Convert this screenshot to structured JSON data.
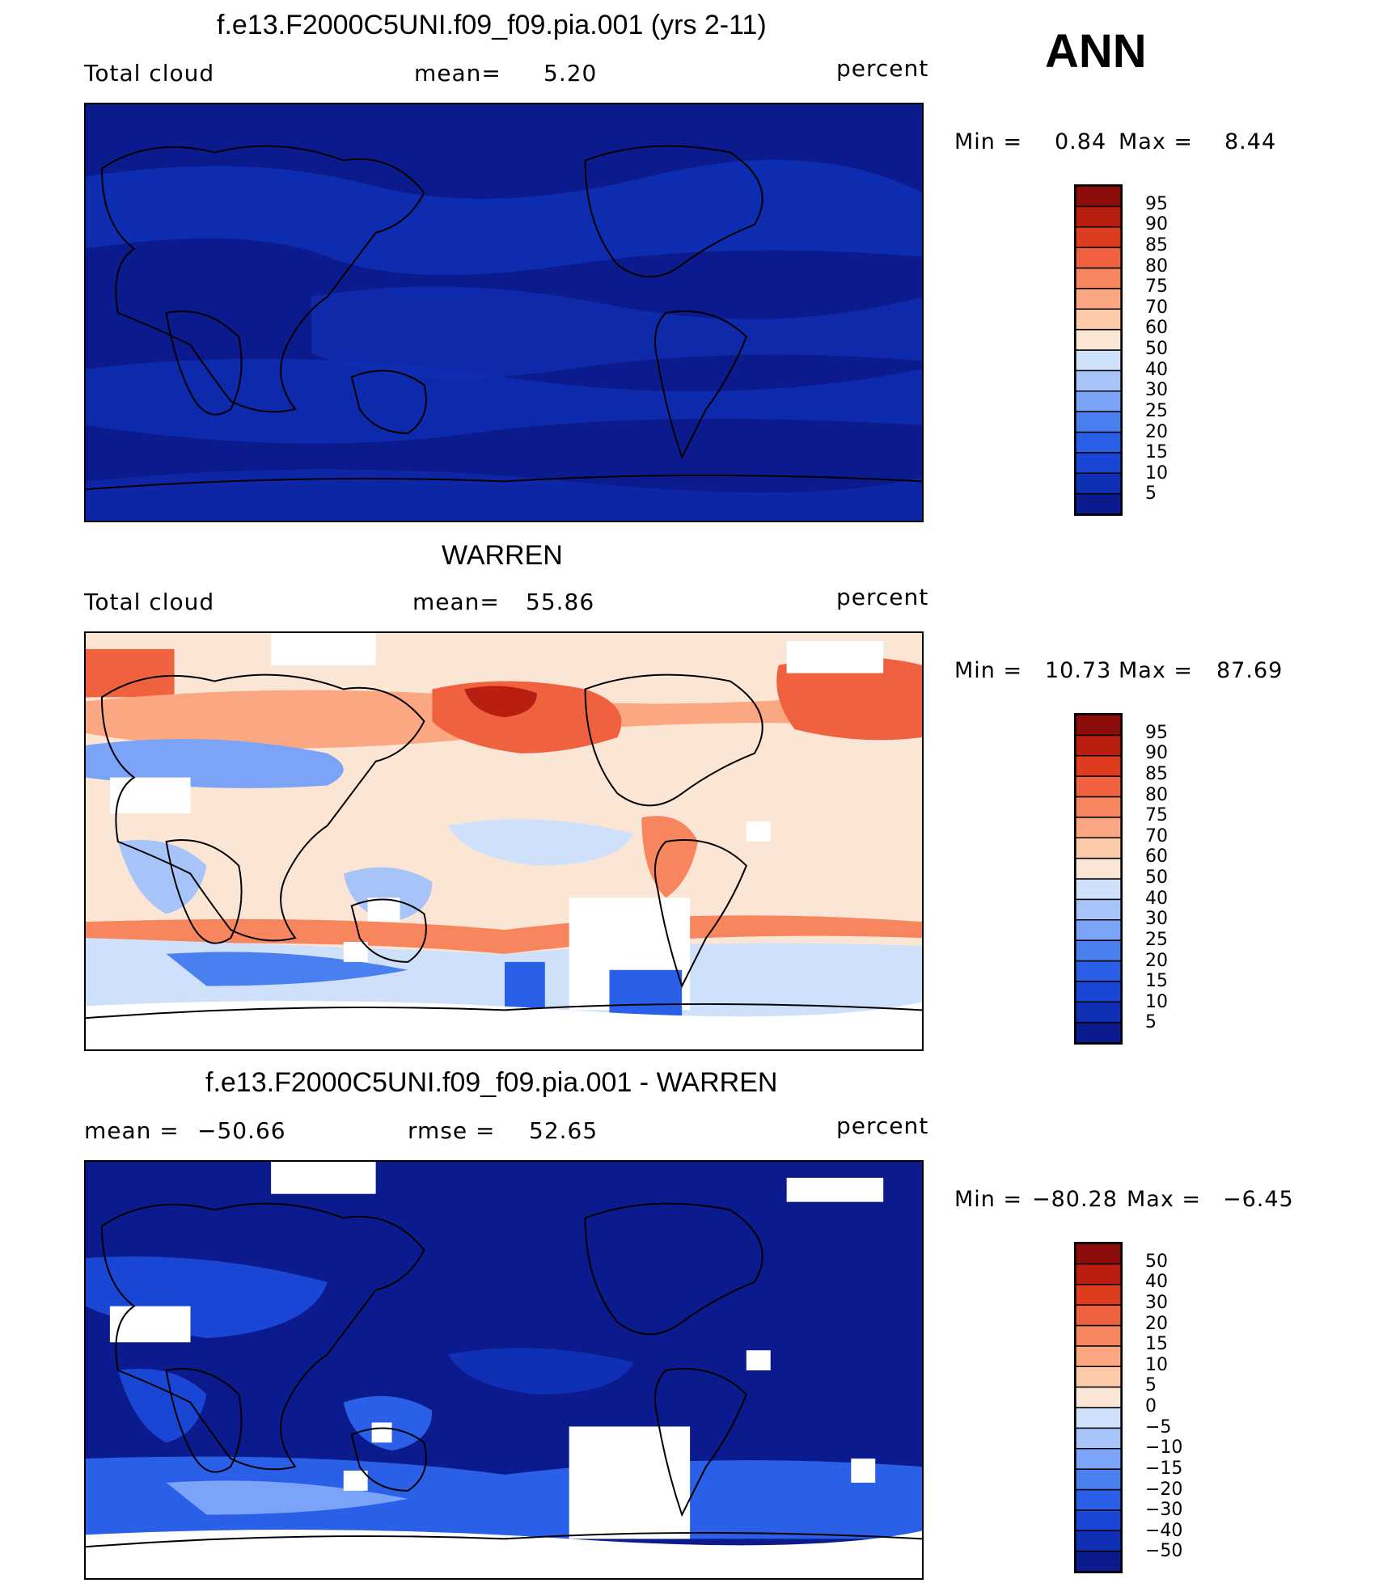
{
  "header": {
    "season": "ANN"
  },
  "colors": {
    "scale": [
      "#0b1b8e",
      "#0f2fb5",
      "#1a46d6",
      "#2a5fe8",
      "#4a7ff0",
      "#7ba3f7",
      "#a7c4f9",
      "#cfe0fa",
      "#fbe6d6",
      "#fcc9a9",
      "#fba882",
      "#f7855e",
      "#f0623f",
      "#dd3c1e",
      "#b91f10",
      "#8b0c08"
    ],
    "land_outline": "#000000",
    "missing": "#ffffff"
  },
  "panels": [
    {
      "title": "f.e13.F2000C5UNI.f09_f09.pia.001 (yrs 2-11)",
      "left_label": "Total cloud",
      "mid_label": "mean=",
      "mid_value": "5.20",
      "mid2_label": "",
      "mid2_value": "",
      "units": "percent",
      "min_label": "Min =",
      "min_value": "0.84",
      "max_label": "Max =",
      "max_value": "8.44",
      "ticks": [
        "95",
        "90",
        "85",
        "80",
        "75",
        "70",
        "60",
        "50",
        "40",
        "30",
        "25",
        "20",
        "15",
        "10",
        "5"
      ]
    },
    {
      "title": "WARREN",
      "left_label": "Total cloud",
      "mid_label": "mean=",
      "mid_value": "55.86",
      "mid2_label": "",
      "mid2_value": "",
      "units": "percent",
      "min_label": "Min =",
      "min_value": "10.73",
      "max_label": "Max =",
      "max_value": "87.69",
      "ticks": [
        "95",
        "90",
        "85",
        "80",
        "75",
        "70",
        "60",
        "50",
        "40",
        "30",
        "25",
        "20",
        "15",
        "10",
        "5"
      ]
    },
    {
      "title": "f.e13.F2000C5UNI.f09_f09.pia.001 - WARREN",
      "left_label": "mean =",
      "left_value": "−50.66",
      "mid_label": "rmse =",
      "mid_value": "52.65",
      "units": "percent",
      "min_label": "Min =",
      "min_value": "−80.28",
      "max_label": "Max =",
      "max_value": "−6.45",
      "ticks": [
        "50",
        "40",
        "30",
        "20",
        "15",
        "10",
        "5",
        "0",
        "−5",
        "−10",
        "−15",
        "−20",
        "−30",
        "−40",
        "−50"
      ]
    }
  ],
  "chart_data": [
    {
      "type": "heatmap",
      "title": "f.e13.F2000C5UNI.f09_f09.pia.001 (yrs 2-11)",
      "variable": "Total cloud",
      "units": "percent",
      "mean": 5.2,
      "min": 0.84,
      "max": 8.44,
      "contour_levels": [
        5,
        10,
        15,
        20,
        25,
        30,
        40,
        50,
        60,
        70,
        75,
        80,
        85,
        90,
        95
      ],
      "season": "ANN"
    },
    {
      "type": "heatmap",
      "title": "WARREN",
      "variable": "Total cloud",
      "units": "percent",
      "mean": 55.86,
      "min": 10.73,
      "max": 87.69,
      "contour_levels": [
        5,
        10,
        15,
        20,
        25,
        30,
        40,
        50,
        60,
        70,
        75,
        80,
        85,
        90,
        95
      ],
      "season": "ANN"
    },
    {
      "type": "heatmap",
      "title": "f.e13.F2000C5UNI.f09_f09.pia.001 - WARREN",
      "units": "percent",
      "mean": -50.66,
      "rmse": 52.65,
      "min": -80.28,
      "max": -6.45,
      "contour_levels": [
        -50,
        -40,
        -30,
        -20,
        -15,
        -10,
        -5,
        0,
        5,
        10,
        15,
        20,
        30,
        40,
        50
      ],
      "season": "ANN"
    }
  ]
}
